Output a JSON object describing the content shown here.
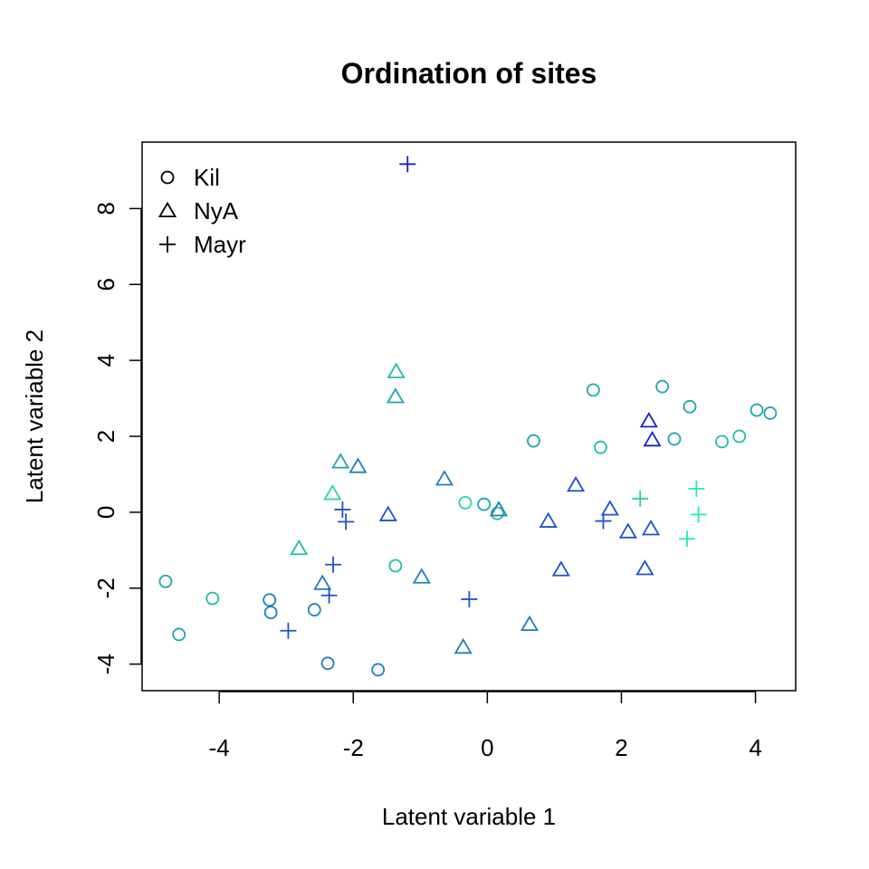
{
  "chart_data": {
    "type": "scatter",
    "title": "Ordination of sites",
    "xlabel": "Latent variable 1",
    "ylabel": "Latent variable 2",
    "xlim": [
      -5.15,
      4.6
    ],
    "ylim": [
      -4.7,
      9.75
    ],
    "x_ticks": [
      -4,
      -2,
      0,
      2,
      4
    ],
    "y_ticks": [
      -4,
      -2,
      0,
      2,
      4,
      6,
      8
    ],
    "grid": false,
    "legend": {
      "placement": "top-left"
    },
    "series": [
      {
        "name": "Kil",
        "marker": "circle",
        "points": [
          {
            "x": -4.8,
            "y": -1.82,
            "color": "#21a3b0"
          },
          {
            "x": -4.6,
            "y": -3.22,
            "color": "#21a3b0"
          },
          {
            "x": -4.1,
            "y": -2.27,
            "color": "#1fbcab"
          },
          {
            "x": -3.25,
            "y": -2.31,
            "color": "#1e7eb8"
          },
          {
            "x": -3.23,
            "y": -2.64,
            "color": "#1e7eb8"
          },
          {
            "x": -2.58,
            "y": -2.57,
            "color": "#1e7eb8"
          },
          {
            "x": -2.38,
            "y": -3.98,
            "color": "#1e7eb8"
          },
          {
            "x": -1.63,
            "y": -4.15,
            "color": "#1e7eb8"
          },
          {
            "x": -1.37,
            "y": -1.41,
            "color": "#1fbcab"
          },
          {
            "x": -0.33,
            "y": 0.25,
            "color": "#22d3a8"
          },
          {
            "x": -0.05,
            "y": 0.21,
            "color": "#21a3b0"
          },
          {
            "x": 0.15,
            "y": -0.03,
            "color": "#1fbcab"
          },
          {
            "x": 0.69,
            "y": 1.88,
            "color": "#21a3b0"
          },
          {
            "x": 1.58,
            "y": 3.22,
            "color": "#21a3b0"
          },
          {
            "x": 1.69,
            "y": 1.71,
            "color": "#1fbcab"
          },
          {
            "x": 2.61,
            "y": 3.31,
            "color": "#21a3b0"
          },
          {
            "x": 2.79,
            "y": 1.93,
            "color": "#21a3b0"
          },
          {
            "x": 3.02,
            "y": 2.78,
            "color": "#21a3b0"
          },
          {
            "x": 3.5,
            "y": 1.86,
            "color": "#1fbcab"
          },
          {
            "x": 3.76,
            "y": 2.0,
            "color": "#1fbcab"
          },
          {
            "x": 4.02,
            "y": 2.69,
            "color": "#21a3b0"
          },
          {
            "x": 4.22,
            "y": 2.61,
            "color": "#21a3b0"
          }
        ]
      },
      {
        "name": "NyA",
        "marker": "triangle",
        "points": [
          {
            "x": -1.36,
            "y": 3.7,
            "color": "#1fbcab"
          },
          {
            "x": -1.37,
            "y": 3.04,
            "color": "#21a3b0"
          },
          {
            "x": -2.19,
            "y": 1.32,
            "color": "#21a3b0"
          },
          {
            "x": -1.93,
            "y": 1.2,
            "color": "#1e7eb8"
          },
          {
            "x": -2.31,
            "y": 0.49,
            "color": "#22d3a8"
          },
          {
            "x": -2.81,
            "y": -0.96,
            "color": "#1fbcab"
          },
          {
            "x": -2.46,
            "y": -1.88,
            "color": "#1e7eb8"
          },
          {
            "x": -1.48,
            "y": -0.07,
            "color": "#1a53cc"
          },
          {
            "x": -0.98,
            "y": -1.71,
            "color": "#1e7eb8"
          },
          {
            "x": -0.64,
            "y": 0.87,
            "color": "#1e7eb8"
          },
          {
            "x": -0.36,
            "y": -3.56,
            "color": "#1e7eb8"
          },
          {
            "x": 0.17,
            "y": 0.06,
            "color": "#1e7eb8"
          },
          {
            "x": 0.63,
            "y": -2.96,
            "color": "#1e7eb8"
          },
          {
            "x": 0.91,
            "y": -0.24,
            "color": "#1a53cc"
          },
          {
            "x": 1.1,
            "y": -1.52,
            "color": "#1a53cc"
          },
          {
            "x": 1.32,
            "y": 0.71,
            "color": "#1a53cc"
          },
          {
            "x": 1.83,
            "y": 0.08,
            "color": "#1a53cc"
          },
          {
            "x": 2.1,
            "y": -0.52,
            "color": "#1a53cc"
          },
          {
            "x": 2.35,
            "y": -1.49,
            "color": "#1a53cc"
          },
          {
            "x": 2.41,
            "y": 2.4,
            "color": "#1a1fcf"
          },
          {
            "x": 2.44,
            "y": -0.44,
            "color": "#1a53cc"
          },
          {
            "x": 2.46,
            "y": 1.9,
            "color": "#1a1fcf"
          }
        ]
      },
      {
        "name": "Mayr",
        "marker": "plus",
        "points": [
          {
            "x": -1.19,
            "y": 9.17,
            "color": "#1a1fcf"
          },
          {
            "x": -2.16,
            "y": 0.07,
            "color": "#1a53cc"
          },
          {
            "x": -2.11,
            "y": -0.25,
            "color": "#1a53cc"
          },
          {
            "x": -2.3,
            "y": -1.38,
            "color": "#1a53cc"
          },
          {
            "x": -2.36,
            "y": -2.19,
            "color": "#1a53cc"
          },
          {
            "x": -2.97,
            "y": -3.12,
            "color": "#1a53cc"
          },
          {
            "x": -0.27,
            "y": -2.29,
            "color": "#1a53cc"
          },
          {
            "x": 1.73,
            "y": -0.23,
            "color": "#1a53cc"
          },
          {
            "x": 2.28,
            "y": 0.36,
            "color": "#22d3a8"
          },
          {
            "x": 2.98,
            "y": -0.7,
            "color": "#24eda3"
          },
          {
            "x": 3.12,
            "y": 0.62,
            "color": "#24eda3"
          },
          {
            "x": 3.15,
            "y": -0.06,
            "color": "#24eda3"
          }
        ]
      }
    ]
  }
}
